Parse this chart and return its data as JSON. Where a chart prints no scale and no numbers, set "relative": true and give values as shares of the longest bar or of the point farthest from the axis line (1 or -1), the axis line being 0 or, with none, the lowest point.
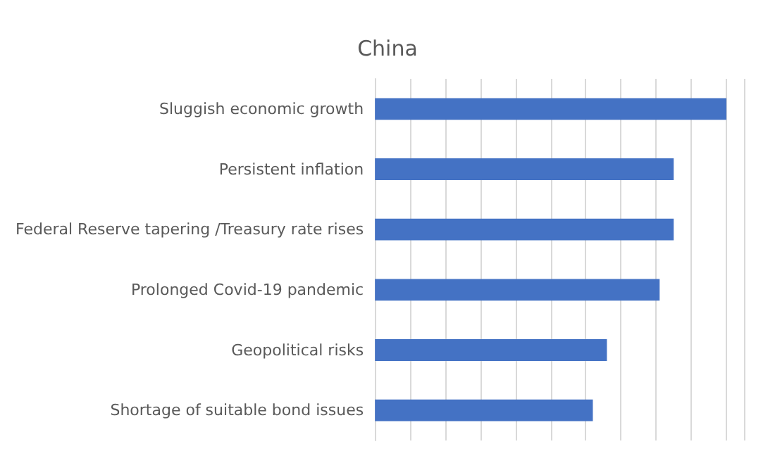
{
  "chart_data": {
    "type": "bar",
    "title": "China",
    "orientation": "horizontal",
    "relative": true,
    "grid": "x",
    "categories": [
      "Sluggish economic growth",
      "Persistent inflation",
      "Federal Reserve tapering /Treasury rate rises",
      "Prolonged Covid-19 pandemic",
      "Geopolitical risks",
      "Shortage of suitable bond issues"
    ],
    "values": [
      1,
      0.85,
      0.85,
      0.81,
      0.66,
      0.62
    ],
    "color": "#4472c4"
  }
}
